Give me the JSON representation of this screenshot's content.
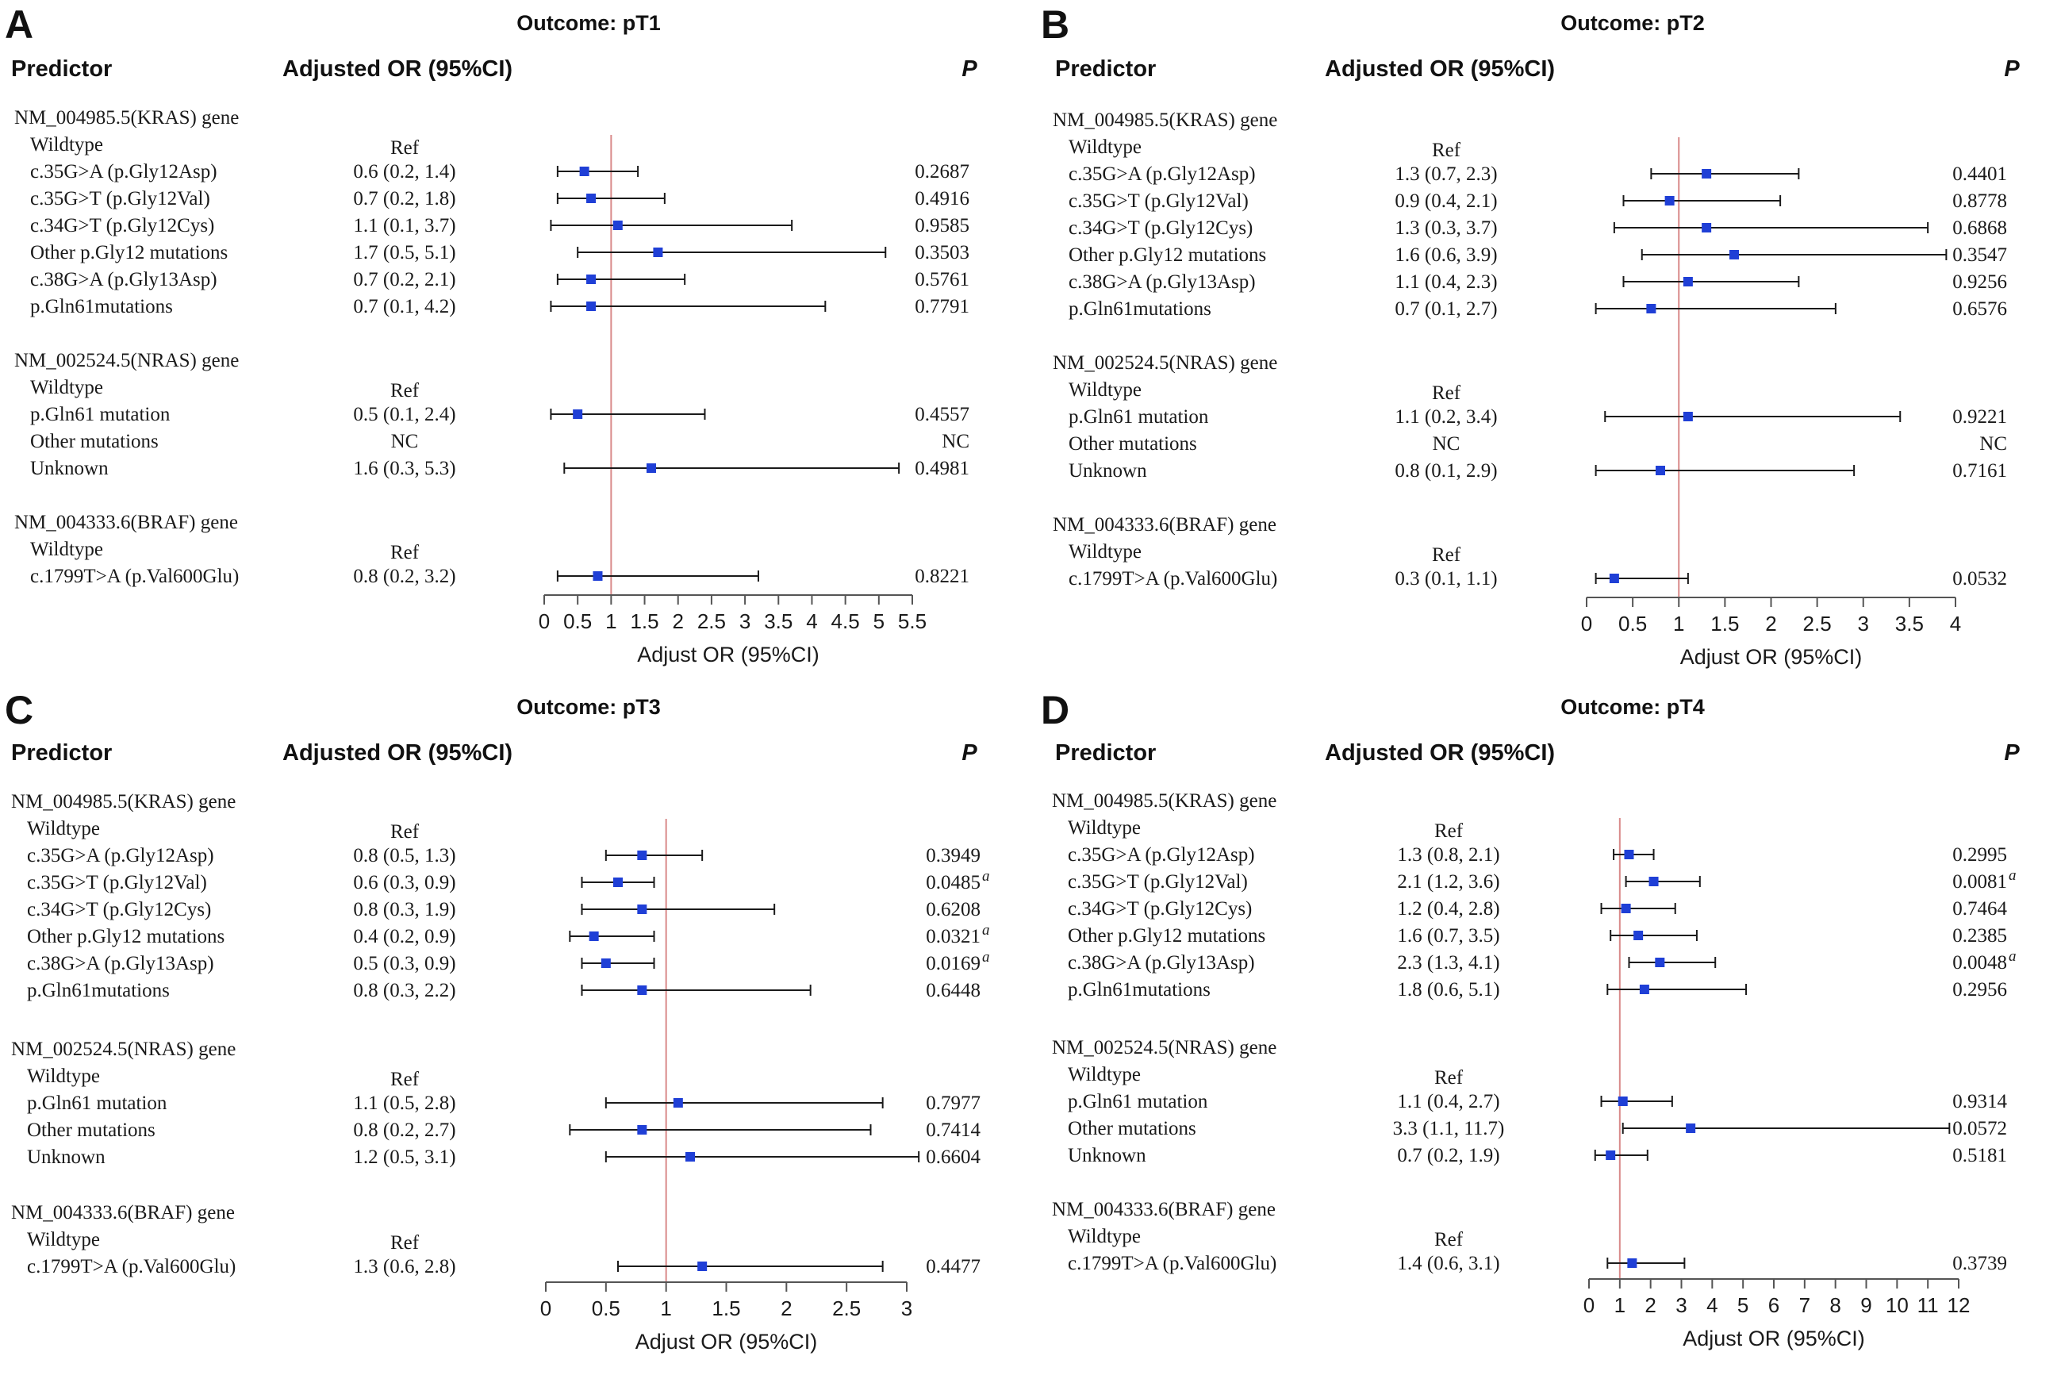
{
  "headers": {
    "predictor": "Predictor",
    "or": "Adjusted OR (95%CI)",
    "p": "P"
  },
  "colors": {
    "marker": "#1f3fd6",
    "reference_line": "#d98a8a",
    "ci_line": "#1a1a1a"
  },
  "chart_data": [
    {
      "type": "forest",
      "panel": "A",
      "title": "Outcome: pT1",
      "xlabel": "Adjust OR (95%CI)",
      "xlim": [
        0,
        5.5
      ],
      "ticks": [
        0,
        0.5,
        1,
        1.5,
        2,
        2.5,
        3,
        3.5,
        4,
        4.5,
        5,
        5.5
      ],
      "tick_labels": [
        "0",
        "0.5",
        "1",
        "1.5",
        "2",
        "2.5",
        "3",
        "3.5",
        "4",
        "4.5",
        "5",
        "5.5"
      ],
      "reference": 1,
      "rows": [
        {
          "label": "NM_004985.5(KRAS) gene",
          "kind": "gene"
        },
        {
          "label": "Wildtype",
          "kind": "ref",
          "or_text": "Ref"
        },
        {
          "label": "c.35G>A (p.Gly12Asp)",
          "or_text": "0.6 (0.2, 1.4)",
          "p": "0.2687",
          "est": 0.6,
          "lo": 0.2,
          "hi": 1.4
        },
        {
          "label": "c.35G>T (p.Gly12Val)",
          "or_text": "0.7 (0.2, 1.8)",
          "p": "0.4916",
          "est": 0.7,
          "lo": 0.2,
          "hi": 1.8
        },
        {
          "label": "c.34G>T (p.Gly12Cys)",
          "or_text": "1.1 (0.1, 3.7)",
          "p": "0.9585",
          "est": 1.1,
          "lo": 0.1,
          "hi": 3.7
        },
        {
          "label": "Other p.Gly12 mutations",
          "or_text": "1.7 (0.5, 5.1)",
          "p": "0.3503",
          "est": 1.7,
          "lo": 0.5,
          "hi": 5.1
        },
        {
          "label": "c.38G>A (p.Gly13Asp)",
          "or_text": "0.7 (0.2, 2.1)",
          "p": "0.5761",
          "est": 0.7,
          "lo": 0.2,
          "hi": 2.1
        },
        {
          "label": "p.Gln61mutations",
          "or_text": "0.7 (0.1, 4.2)",
          "p": "0.7791",
          "est": 0.7,
          "lo": 0.1,
          "hi": 4.2
        },
        {
          "label": "NM_002524.5(NRAS) gene",
          "kind": "gene"
        },
        {
          "label": "Wildtype",
          "kind": "ref",
          "or_text": "Ref"
        },
        {
          "label": "p.Gln61 mutation",
          "or_text": "0.5 (0.1, 2.4)",
          "p": "0.4557",
          "est": 0.5,
          "lo": 0.1,
          "hi": 2.4
        },
        {
          "label": "Other mutations",
          "or_text": "NC",
          "p": "NC"
        },
        {
          "label": "Unknown",
          "or_text": "1.6 (0.3, 5.3)",
          "p": "0.4981",
          "est": 1.6,
          "lo": 0.3,
          "hi": 5.3
        },
        {
          "label": "NM_004333.6(BRAF) gene",
          "kind": "gene"
        },
        {
          "label": "Wildtype",
          "kind": "ref",
          "or_text": "Ref"
        },
        {
          "label": "c.1799T>A (p.Val600Glu)",
          "or_text": "0.8 (0.2, 3.2)",
          "p": "0.8221",
          "est": 0.8,
          "lo": 0.2,
          "hi": 3.2
        }
      ]
    },
    {
      "type": "forest",
      "panel": "B",
      "title": "Outcome: pT2",
      "xlabel": "Adjust OR (95%CI)",
      "xlim": [
        0,
        4
      ],
      "ticks": [
        0,
        0.5,
        1,
        1.5,
        2,
        2.5,
        3,
        3.5,
        4
      ],
      "tick_labels": [
        "0",
        "0.5",
        "1",
        "1.5",
        "2",
        "2.5",
        "3",
        "3.5",
        "4"
      ],
      "reference": 1,
      "rows": [
        {
          "label": "NM_004985.5(KRAS) gene",
          "kind": "gene"
        },
        {
          "label": "Wildtype",
          "kind": "ref",
          "or_text": "Ref"
        },
        {
          "label": "c.35G>A (p.Gly12Asp)",
          "or_text": "1.3 (0.7, 2.3)",
          "p": "0.4401",
          "est": 1.3,
          "lo": 0.7,
          "hi": 2.3
        },
        {
          "label": "c.35G>T (p.Gly12Val)",
          "or_text": "0.9 (0.4, 2.1)",
          "p": "0.8778",
          "est": 0.9,
          "lo": 0.4,
          "hi": 2.1
        },
        {
          "label": "c.34G>T (p.Gly12Cys)",
          "or_text": "1.3 (0.3, 3.7)",
          "p": "0.6868",
          "est": 1.3,
          "lo": 0.3,
          "hi": 3.7
        },
        {
          "label": "Other p.Gly12 mutations",
          "or_text": "1.6 (0.6, 3.9)",
          "p": "0.3547",
          "est": 1.6,
          "lo": 0.6,
          "hi": 3.9
        },
        {
          "label": "c.38G>A (p.Gly13Asp)",
          "or_text": "1.1 (0.4, 2.3)",
          "p": "0.9256",
          "est": 1.1,
          "lo": 0.4,
          "hi": 2.3
        },
        {
          "label": "p.Gln61mutations",
          "or_text": "0.7 (0.1, 2.7)",
          "p": "0.6576",
          "est": 0.7,
          "lo": 0.1,
          "hi": 2.7
        },
        {
          "label": "NM_002524.5(NRAS) gene",
          "kind": "gene"
        },
        {
          "label": "Wildtype",
          "kind": "ref",
          "or_text": "Ref"
        },
        {
          "label": "p.Gln61 mutation",
          "or_text": "1.1 (0.2, 3.4)",
          "p": "0.9221",
          "est": 1.1,
          "lo": 0.2,
          "hi": 3.4
        },
        {
          "label": "Other mutations",
          "or_text": "NC",
          "p": "NC"
        },
        {
          "label": "Unknown",
          "or_text": "0.8 (0.1, 2.9)",
          "p": "0.7161",
          "est": 0.8,
          "lo": 0.1,
          "hi": 2.9
        },
        {
          "label": "NM_004333.6(BRAF) gene",
          "kind": "gene"
        },
        {
          "label": "Wildtype",
          "kind": "ref",
          "or_text": "Ref"
        },
        {
          "label": "c.1799T>A (p.Val600Glu)",
          "or_text": "0.3 (0.1, 1.1)",
          "p": "0.0532",
          "est": 0.3,
          "lo": 0.1,
          "hi": 1.1
        }
      ]
    },
    {
      "type": "forest",
      "panel": "C",
      "title": "Outcome: pT3",
      "xlabel": "Adjust OR (95%CI)",
      "xlim": [
        0,
        3
      ],
      "ticks": [
        0,
        0.5,
        1,
        1.5,
        2,
        2.5,
        3
      ],
      "tick_labels": [
        "0",
        "0.5",
        "1",
        "1.5",
        "2",
        "2.5",
        "3"
      ],
      "reference": 1,
      "rows": [
        {
          "label": "NM_004985.5(KRAS) gene",
          "kind": "gene"
        },
        {
          "label": "Wildtype",
          "kind": "ref",
          "or_text": "Ref"
        },
        {
          "label": "c.35G>A (p.Gly12Asp)",
          "or_text": "0.8 (0.5, 1.3)",
          "p": "0.3949",
          "est": 0.8,
          "lo": 0.5,
          "hi": 1.3
        },
        {
          "label": "c.35G>T (p.Gly12Val)",
          "or_text": "0.6 (0.3, 0.9)",
          "p": "0.0485",
          "sig": "a",
          "est": 0.6,
          "lo": 0.3,
          "hi": 0.9
        },
        {
          "label": "c.34G>T (p.Gly12Cys)",
          "or_text": "0.8 (0.3, 1.9)",
          "p": "0.6208",
          "est": 0.8,
          "lo": 0.3,
          "hi": 1.9
        },
        {
          "label": "Other p.Gly12 mutations",
          "or_text": "0.4 (0.2, 0.9)",
          "p": "0.0321",
          "sig": "a",
          "est": 0.4,
          "lo": 0.2,
          "hi": 0.9
        },
        {
          "label": "c.38G>A (p.Gly13Asp)",
          "or_text": "0.5 (0.3, 0.9)",
          "p": "0.0169",
          "sig": "a",
          "est": 0.5,
          "lo": 0.3,
          "hi": 0.9
        },
        {
          "label": "p.Gln61mutations",
          "or_text": "0.8 (0.3, 2.2)",
          "p": "0.6448",
          "est": 0.8,
          "lo": 0.3,
          "hi": 2.2
        },
        {
          "label": "NM_002524.5(NRAS) gene",
          "kind": "gene"
        },
        {
          "label": "Wildtype",
          "kind": "ref",
          "or_text": "Ref"
        },
        {
          "label": "p.Gln61 mutation",
          "or_text": "1.1 (0.5, 2.8)",
          "p": "0.7977",
          "est": 1.1,
          "lo": 0.5,
          "hi": 2.8
        },
        {
          "label": "Other mutations",
          "or_text": "0.8 (0.2, 2.7)",
          "p": "0.7414",
          "est": 0.8,
          "lo": 0.2,
          "hi": 2.7
        },
        {
          "label": "Unknown",
          "or_text": "1.2 (0.5, 3.1)",
          "p": "0.6604",
          "est": 1.2,
          "lo": 0.5,
          "hi": 3.1
        },
        {
          "label": "NM_004333.6(BRAF) gene",
          "kind": "gene"
        },
        {
          "label": "Wildtype",
          "kind": "ref",
          "or_text": "Ref"
        },
        {
          "label": "c.1799T>A (p.Val600Glu)",
          "or_text": "1.3 (0.6, 2.8)",
          "p": "0.4477",
          "est": 1.3,
          "lo": 0.6,
          "hi": 2.8
        }
      ]
    },
    {
      "type": "forest",
      "panel": "D",
      "title": "Outcome: pT4",
      "xlabel": "Adjust OR (95%CI)",
      "xlim": [
        0,
        12
      ],
      "ticks": [
        0,
        1,
        2,
        3,
        4,
        5,
        6,
        7,
        8,
        9,
        10,
        11,
        12
      ],
      "tick_labels": [
        "0",
        "1",
        "2",
        "3",
        "4",
        "5",
        "6",
        "7",
        "8",
        "9",
        "10",
        "11",
        "12"
      ],
      "reference": 1,
      "rows": [
        {
          "label": "NM_004985.5(KRAS) gene",
          "kind": "gene"
        },
        {
          "label": "Wildtype",
          "kind": "ref",
          "or_text": "Ref"
        },
        {
          "label": "c.35G>A (p.Gly12Asp)",
          "or_text": "1.3 (0.8, 2.1)",
          "p": "0.2995",
          "est": 1.3,
          "lo": 0.8,
          "hi": 2.1
        },
        {
          "label": "c.35G>T (p.Gly12Val)",
          "or_text": "2.1 (1.2, 3.6)",
          "p": "0.0081",
          "sig": "a",
          "est": 2.1,
          "lo": 1.2,
          "hi": 3.6
        },
        {
          "label": "c.34G>T (p.Gly12Cys)",
          "or_text": "1.2 (0.4, 2.8)",
          "p": "0.7464",
          "est": 1.2,
          "lo": 0.4,
          "hi": 2.8
        },
        {
          "label": "Other p.Gly12 mutations",
          "or_text": "1.6 (0.7, 3.5)",
          "p": "0.2385",
          "est": 1.6,
          "lo": 0.7,
          "hi": 3.5
        },
        {
          "label": "c.38G>A (p.Gly13Asp)",
          "or_text": "2.3 (1.3, 4.1)",
          "p": "0.0048",
          "sig": "a",
          "est": 2.3,
          "lo": 1.3,
          "hi": 4.1
        },
        {
          "label": "p.Gln61mutations",
          "or_text": "1.8 (0.6, 5.1)",
          "p": "0.2956",
          "est": 1.8,
          "lo": 0.6,
          "hi": 5.1
        },
        {
          "label": "NM_002524.5(NRAS) gene",
          "kind": "gene"
        },
        {
          "label": "Wildtype",
          "kind": "ref",
          "or_text": "Ref"
        },
        {
          "label": "p.Gln61 mutation",
          "or_text": "1.1 (0.4, 2.7)",
          "p": "0.9314",
          "est": 1.1,
          "lo": 0.4,
          "hi": 2.7
        },
        {
          "label": "Other mutations",
          "or_text": "3.3 (1.1, 11.7)",
          "p": "0.0572",
          "est": 3.3,
          "lo": 1.1,
          "hi": 11.7
        },
        {
          "label": "Unknown",
          "or_text": "0.7 (0.2, 1.9)",
          "p": "0.5181",
          "est": 0.7,
          "lo": 0.2,
          "hi": 1.9
        },
        {
          "label": "NM_004333.6(BRAF) gene",
          "kind": "gene"
        },
        {
          "label": "Wildtype",
          "kind": "ref",
          "or_text": "Ref"
        },
        {
          "label": "c.1799T>A (p.Val600Glu)",
          "or_text": "1.4 (0.6, 3.1)",
          "p": "0.3739",
          "est": 1.4,
          "lo": 0.6,
          "hi": 3.1
        }
      ]
    }
  ]
}
